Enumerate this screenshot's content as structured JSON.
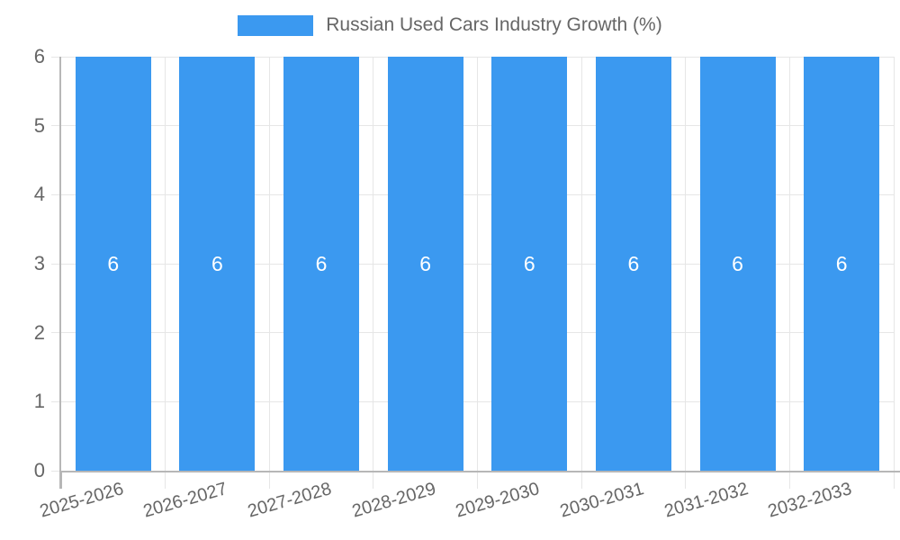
{
  "chart_data": {
    "type": "bar",
    "legend_label": "Russian Used Cars Industry Growth (%)",
    "categories": [
      "2025-2026",
      "2026-2027",
      "2027-2028",
      "2028-2029",
      "2029-2030",
      "2030-2031",
      "2031-2032",
      "2032-2033"
    ],
    "values": [
      6,
      6,
      6,
      6,
      6,
      6,
      6,
      6
    ],
    "bar_labels": [
      "6",
      "6",
      "6",
      "6",
      "6",
      "6",
      "6",
      "6"
    ],
    "ylabel": "",
    "xlabel": "",
    "ylim": [
      0,
      6
    ],
    "yticks": [
      0,
      1,
      2,
      3,
      4,
      5,
      6
    ],
    "grid": true,
    "legend_position": "top",
    "colors": {
      "bar": "#3B99F0",
      "bar_label": "#FFFFFF",
      "axis_text": "#666666",
      "gridline": "#E6E6E6",
      "axis_line": "#B7B7B7"
    }
  }
}
